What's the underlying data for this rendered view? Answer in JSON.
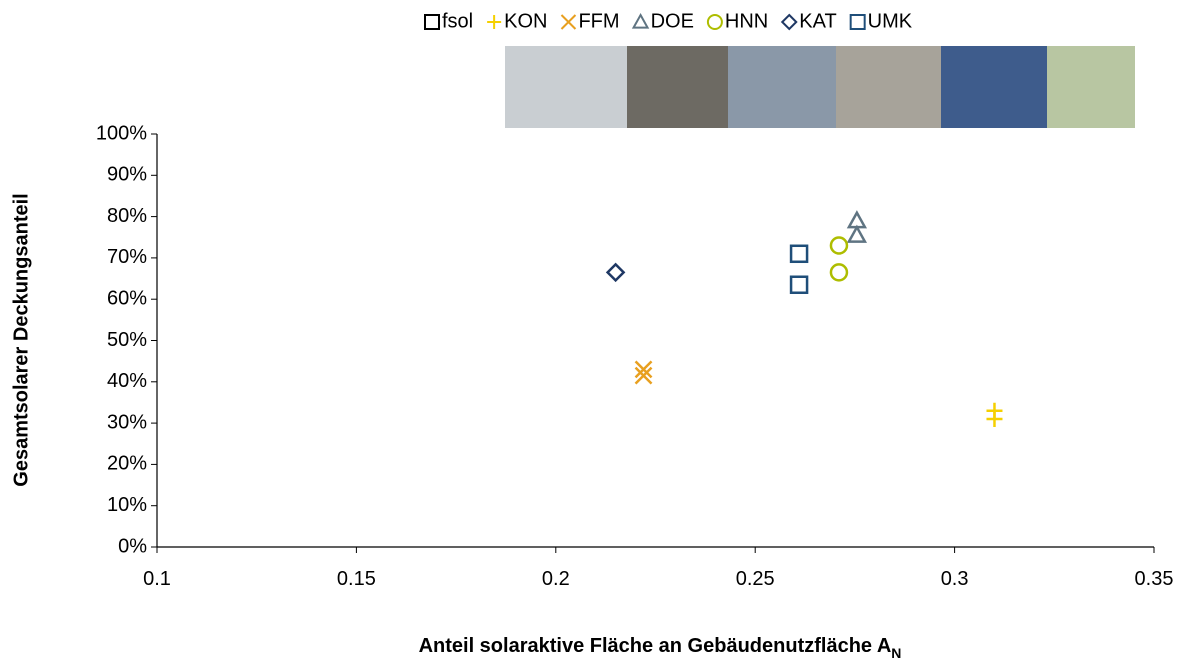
{
  "chart_data": {
    "type": "scatter",
    "xlabel": "Anteil solaraktive Fläche an Gebäudenutzfläche A",
    "xlabel_subscript": "N",
    "ylabel": "Gesamtsolarer Deckungsanteil",
    "xlim": [
      0.1,
      0.35
    ],
    "xticks": [
      0.1,
      0.15,
      0.2,
      0.25,
      0.3,
      0.35
    ],
    "ylim": [
      0,
      100
    ],
    "yticks": [
      {
        "value": 0,
        "label": "0%"
      },
      {
        "value": 10,
        "label": "10%"
      },
      {
        "value": 20,
        "label": "20%"
      },
      {
        "value": 30,
        "label": "30%"
      },
      {
        "value": 40,
        "label": "40%"
      },
      {
        "value": 50,
        "label": "50%"
      },
      {
        "value": 60,
        "label": "60%"
      },
      {
        "value": 70,
        "label": "70%"
      },
      {
        "value": 80,
        "label": "80%"
      },
      {
        "value": 90,
        "label": "90%"
      },
      {
        "value": 100,
        "label": "100%"
      }
    ],
    "grid": false,
    "legend": "top-right",
    "series": [
      {
        "name": "fsol",
        "color": "#000000",
        "marker": "square",
        "x": [],
        "values": []
      },
      {
        "name": "KON",
        "color": "#f5d000",
        "marker": "plus",
        "x": [
          0.31,
          0.31
        ],
        "values": [
          33,
          31
        ]
      },
      {
        "name": "FFM",
        "color": "#e8a020",
        "marker": "x",
        "x": [
          0.222,
          0.222
        ],
        "values": [
          43,
          41.5
        ]
      },
      {
        "name": "DOE",
        "color": "#5f7482",
        "marker": "triangle",
        "x": [
          0.2755,
          0.2755
        ],
        "values": [
          79,
          75.5
        ]
      },
      {
        "name": "HNN",
        "color": "#aebd00",
        "marker": "circle",
        "x": [
          0.271,
          0.271
        ],
        "values": [
          73,
          66.5
        ]
      },
      {
        "name": "KAT",
        "color": "#1f3864",
        "marker": "diamond",
        "x": [
          0.215
        ],
        "values": [
          66.5
        ]
      },
      {
        "name": "UMK",
        "color": "#1f4e79",
        "marker": "square",
        "x": [
          0.261,
          0.261
        ],
        "values": [
          71,
          63.5
        ]
      }
    ]
  }
}
